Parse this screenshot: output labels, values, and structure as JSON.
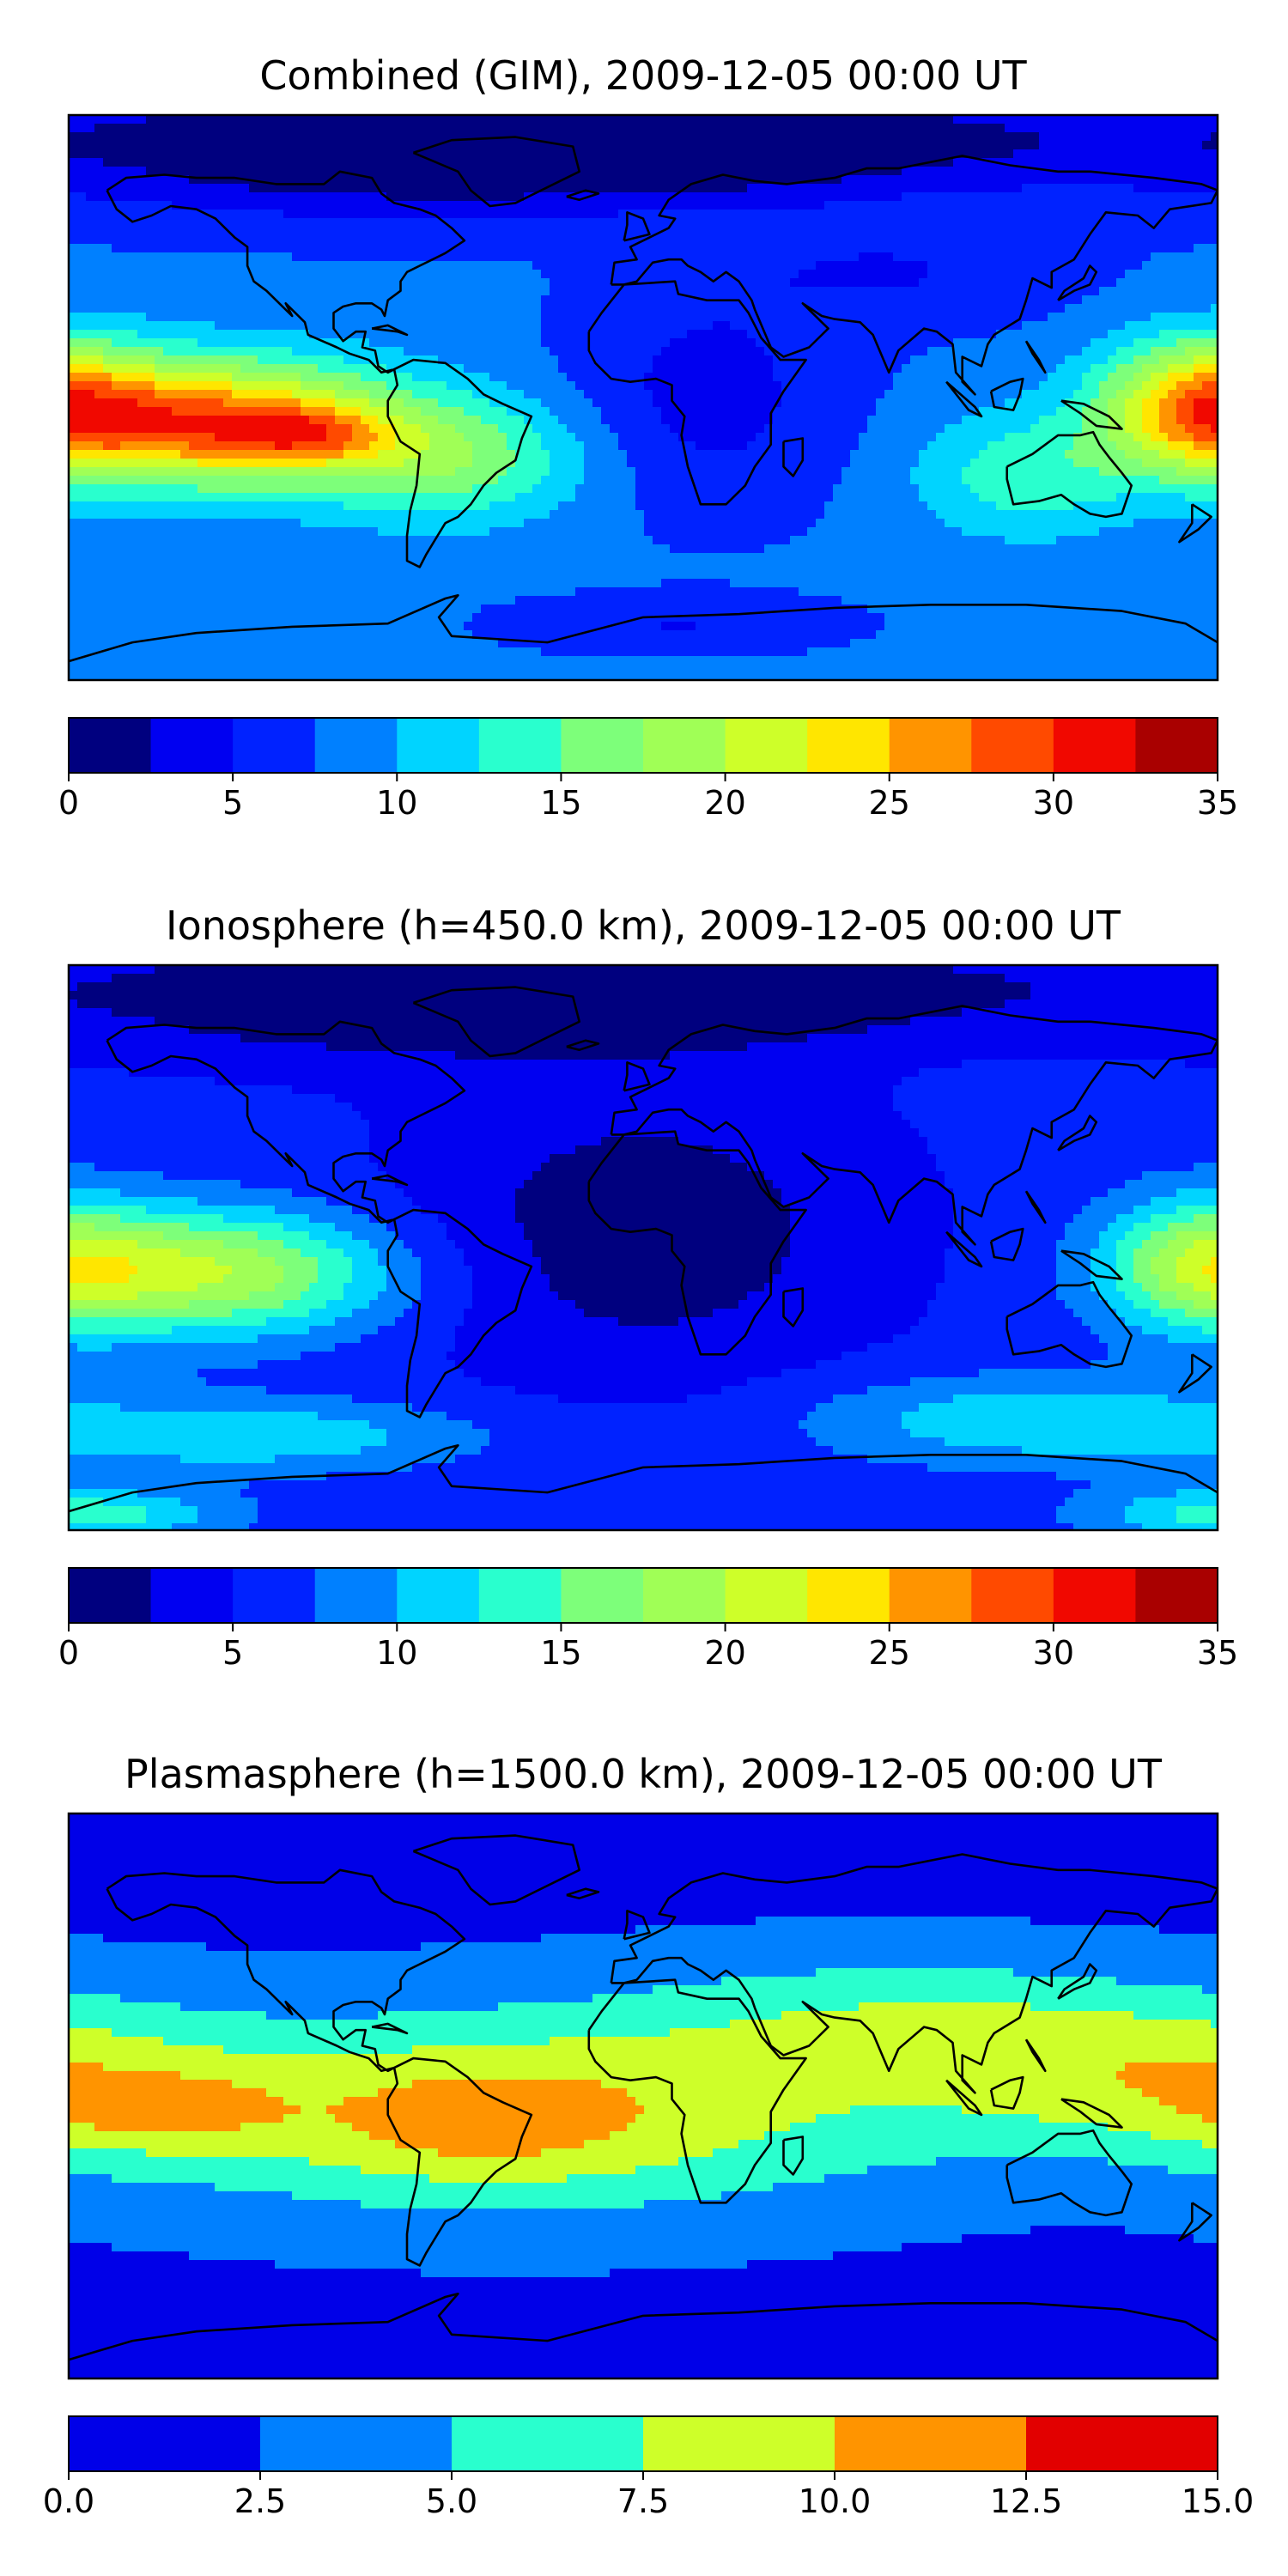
{
  "chart_data": [
    {
      "type": "heatmap",
      "title": "Combined (GIM), 2009-12-05 00:00 UT",
      "colorbar": {
        "min": 0,
        "max": 35,
        "step": 2.5,
        "ticks": [
          0,
          5,
          10,
          15,
          20,
          25,
          30,
          35
        ],
        "tick_labels": [
          "0",
          "5",
          "10",
          "15",
          "20",
          "25",
          "30",
          "35"
        ],
        "colors": [
          "#00007f",
          "#0000f1",
          "#0022ff",
          "#0080ff",
          "#00d4ff",
          "#29ffce",
          "#7dff7a",
          "#a0ff56",
          "#ceff29",
          "#ffe600",
          "#ff9400",
          "#ff4a00",
          "#f10800",
          "#a90000"
        ]
      },
      "field": {
        "base": 8,
        "features": [
          {
            "lon": -135,
            "lat": -8,
            "amp": 20,
            "slon": 40,
            "slat": 14
          },
          {
            "lon": -105,
            "lat": -12,
            "amp": 7,
            "slon": 18,
            "slat": 6
          },
          {
            "lon": 175,
            "lat": -2,
            "amp": 14,
            "slon": 22,
            "slat": 15
          },
          {
            "lon": -60,
            "lat": -20,
            "amp": 8,
            "slon": 30,
            "slat": 14
          },
          {
            "lon": 120,
            "lat": -25,
            "amp": 6,
            "slon": 25,
            "slat": 14
          },
          {
            "lon": 20,
            "lat": 0,
            "amp": -4,
            "slon": 30,
            "slat": 25
          },
          {
            "lon": -90,
            "lat": 80,
            "amp": -8,
            "slon": 80,
            "slat": 15
          },
          {
            "lon": 30,
            "lat": 82,
            "amp": -8,
            "slon": 80,
            "slat": 12
          },
          {
            "lon": 10,
            "lat": -72,
            "amp": -3,
            "slon": 35,
            "slat": 6
          },
          {
            "lon": 80,
            "lat": 40,
            "amp": -3,
            "slon": 40,
            "slat": 12
          }
        ]
      }
    },
    {
      "type": "heatmap",
      "title": "Ionosphere  (h=450.0 km), 2009-12-05 00:00 UT",
      "colorbar": {
        "min": 0,
        "max": 35,
        "step": 2.5,
        "ticks": [
          0,
          5,
          10,
          15,
          20,
          25,
          30,
          35
        ],
        "tick_labels": [
          "0",
          "5",
          "10",
          "15",
          "20",
          "25",
          "30",
          "35"
        ],
        "colors": [
          "#00007f",
          "#0000f1",
          "#0022ff",
          "#0080ff",
          "#00d4ff",
          "#29ffce",
          "#7dff7a",
          "#a0ff56",
          "#ceff29",
          "#ffe600",
          "#ff9400",
          "#ff4a00",
          "#f10800",
          "#a90000"
        ]
      },
      "field": {
        "base": 6,
        "features": [
          {
            "lon": -135,
            "lat": -8,
            "amp": 14,
            "slon": 40,
            "slat": 14
          },
          {
            "lon": 175,
            "lat": -5,
            "amp": 10,
            "slon": 22,
            "slat": 15
          },
          {
            "lon": 0,
            "lat": 5,
            "amp": -5,
            "slon": 55,
            "slat": 35
          },
          {
            "lon": -120,
            "lat": -60,
            "amp": 6,
            "slon": 50,
            "slat": 8
          },
          {
            "lon": 120,
            "lat": -55,
            "amp": 6,
            "slon": 50,
            "slat": 10
          },
          {
            "lon": -90,
            "lat": 80,
            "amp": -5,
            "slon": 80,
            "slat": 15
          },
          {
            "lon": 30,
            "lat": 82,
            "amp": -5,
            "slon": 80,
            "slat": 12
          },
          {
            "lon": -175,
            "lat": -85,
            "amp": 8,
            "slon": 30,
            "slat": 6
          }
        ]
      }
    },
    {
      "type": "heatmap",
      "title": "Plasmasphere (h=1500.0 km), 2009-12-05 00:00 UT",
      "colorbar": {
        "min": 0,
        "max": 15,
        "step": 2.5,
        "ticks": [
          0,
          2.5,
          5,
          7.5,
          10,
          12.5,
          15
        ],
        "tick_labels": [
          "0.0",
          "2.5",
          "5.0",
          "7.5",
          "10.0",
          "12.5",
          "15.0"
        ],
        "colors": [
          "#0000e8",
          "#0080ff",
          "#29ffce",
          "#ceff29",
          "#ff9400",
          "#e20000"
        ]
      },
      "field": {
        "base": 2,
        "features": [
          {
            "lon": -40,
            "lat": -5,
            "amp": 8,
            "slon": 90,
            "slat": 22
          },
          {
            "lon": -50,
            "lat": -10,
            "amp": 2,
            "slon": 30,
            "slat": 12
          },
          {
            "lon": -150,
            "lat": -5,
            "amp": 3,
            "slon": 25,
            "slat": 8
          },
          {
            "lon": 160,
            "lat": 5,
            "amp": 6,
            "slon": 50,
            "slat": 18
          },
          {
            "lon": 80,
            "lat": 25,
            "amp": 4,
            "slon": 60,
            "slat": 15
          }
        ]
      }
    }
  ]
}
